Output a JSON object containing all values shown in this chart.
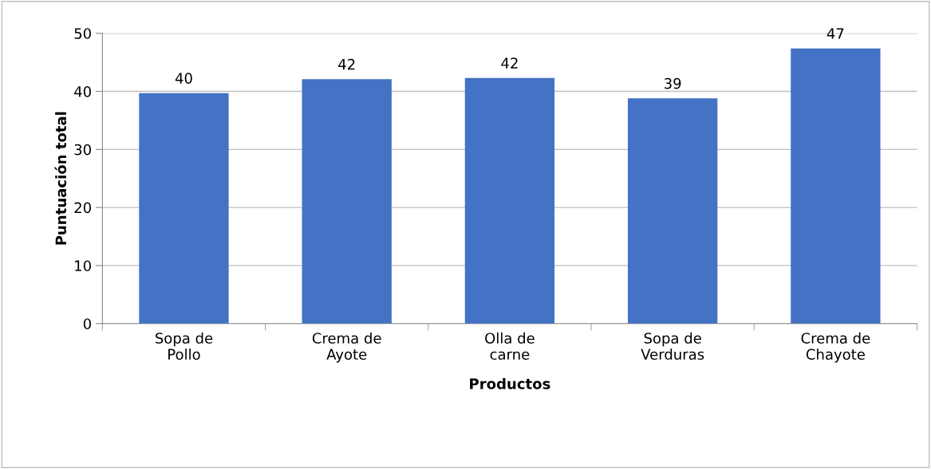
{
  "chart_data": {
    "type": "bar",
    "xlabel": "Productos",
    "ylabel": "Puntuación total",
    "categories": [
      "Sopa de Pollo",
      "Crema de Ayote",
      "Olla de carne",
      "Sopa de Verduras",
      "Crema de Chayote"
    ],
    "values": [
      39.7,
      42.1,
      42.3,
      38.8,
      47.4
    ],
    "value_labels": [
      "40",
      "42",
      "42",
      "39",
      "47"
    ],
    "color": "#4472c4",
    "ylim": [
      0,
      50
    ],
    "yticks": [
      0,
      10,
      20,
      30,
      40,
      50
    ],
    "grid": "y",
    "legend": false
  }
}
